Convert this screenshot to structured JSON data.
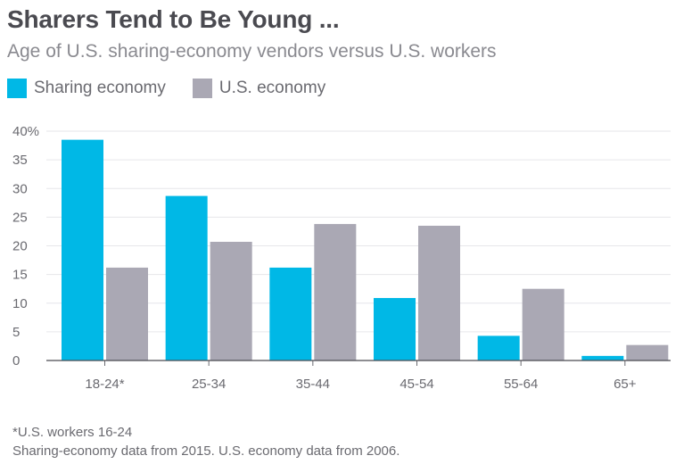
{
  "colors": {
    "sharing": "#00b8e6",
    "us": "#aaa8b4"
  },
  "chart_data": {
    "type": "bar",
    "title": "Sharers Tend to Be Young ...",
    "subtitle": "Age of U.S. sharing-economy vendors versus U.S. workers",
    "categories": [
      "18-24*",
      "25-34",
      "35-44",
      "45-54",
      "55-64",
      "65+"
    ],
    "series": [
      {
        "name": "Sharing economy",
        "values": [
          38.5,
          28.7,
          16.2,
          10.9,
          4.3,
          0.8
        ]
      },
      {
        "name": "U.S. economy",
        "values": [
          16.2,
          20.7,
          23.8,
          23.5,
          12.5,
          2.7
        ]
      }
    ],
    "ylim": [
      0,
      40
    ],
    "yticks": [
      0,
      5,
      10,
      15,
      20,
      25,
      30,
      35,
      40
    ],
    "ytick_labels": [
      "0",
      "5",
      "10",
      "15",
      "20",
      "25",
      "30",
      "35",
      "40%"
    ],
    "grid": true,
    "legend": "top-left",
    "footnotes": [
      "*U.S. workers 16-24",
      "Sharing-economy data from 2015. U.S. economy data from 2006."
    ]
  }
}
